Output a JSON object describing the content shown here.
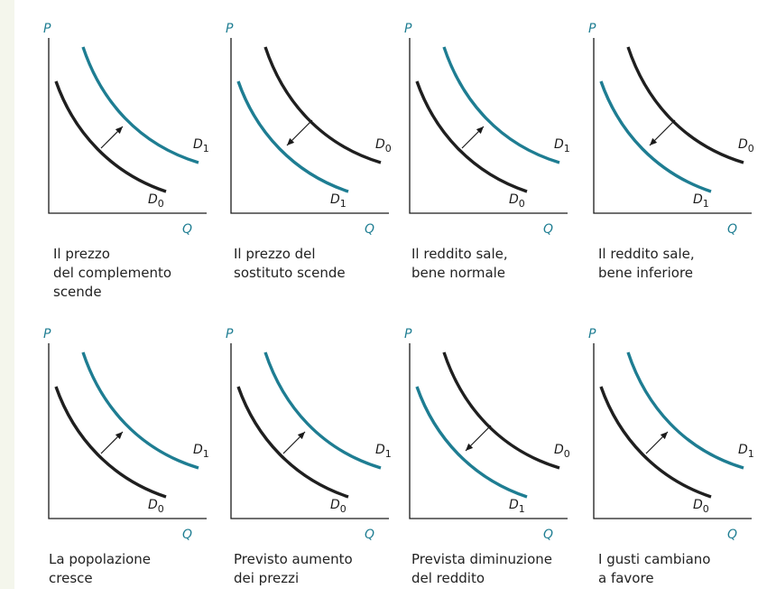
{
  "panels": [
    {
      "caption": "Il prezzo\ndel complemento\nscende",
      "shift": "right",
      "y_label": "P",
      "x_label": "Q",
      "d0_label": "D",
      "d0_sub": "0",
      "d1_label": "D",
      "d1_sub": "1"
    },
    {
      "caption": "Il prezzo del\nsostituto scende",
      "shift": "left",
      "y_label": "P",
      "x_label": "Q",
      "d0_label": "D",
      "d0_sub": "0",
      "d1_label": "D",
      "d1_sub": "1"
    },
    {
      "caption": "Il reddito sale,\nbene normale",
      "shift": "right",
      "y_label": "P",
      "x_label": "Q",
      "d0_label": "D",
      "d0_sub": "0",
      "d1_label": "D",
      "d1_sub": "1"
    },
    {
      "caption": "Il reddito sale,\nbene inferiore",
      "shift": "left",
      "y_label": "P",
      "x_label": "Q",
      "d0_label": "D",
      "d0_sub": "0",
      "d1_label": "D",
      "d1_sub": "1"
    },
    {
      "caption": "La popolazione\ncresce",
      "shift": "right",
      "y_label": "P",
      "x_label": "Q",
      "d0_label": "D",
      "d0_sub": "0",
      "d1_label": "D",
      "d1_sub": "1"
    },
    {
      "caption": "Previsto aumento\ndei prezzi",
      "shift": "right",
      "y_label": "P",
      "x_label": "Q",
      "d0_label": "D",
      "d0_sub": "0",
      "d1_label": "D",
      "d1_sub": "1"
    },
    {
      "caption": "Prevista diminuzione\ndel reddito",
      "shift": "left",
      "y_label": "P",
      "x_label": "Q",
      "d0_label": "D",
      "d0_sub": "0",
      "d1_label": "D",
      "d1_sub": "1"
    },
    {
      "caption": "I gusti cambiano\na favore",
      "shift": "right",
      "y_label": "P",
      "x_label": "Q",
      "d0_label": "D",
      "d0_sub": "0",
      "d1_label": "D",
      "d1_sub": "1"
    }
  ],
  "colors": {
    "original_demand": "#1f1f1f",
    "new_demand": "#1e7d92",
    "axis_labels": "#1e7d92",
    "background": "#f4f6ec"
  }
}
